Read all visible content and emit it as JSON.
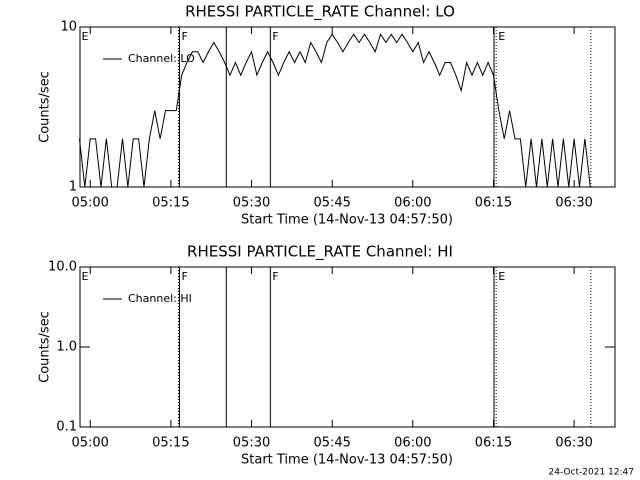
{
  "chart_data": [
    {
      "type": "line",
      "title": "RHESSI PARTICLE_RATE Channel: LO",
      "xlabel": "Start Time (14-Nov-13 04:57:50)",
      "ylabel": "Counts/sec",
      "log_y": true,
      "ylim": [
        1,
        10
      ],
      "yticks": [
        1,
        10
      ],
      "xlim": [
        298.1,
        397.6
      ],
      "xticks": [
        {
          "value": 300,
          "label": "05:00"
        },
        {
          "value": 315,
          "label": "05:15"
        },
        {
          "value": 330,
          "label": "05:30"
        },
        {
          "value": 345,
          "label": "05:45"
        },
        {
          "value": 360,
          "label": "06:00"
        },
        {
          "value": 375,
          "label": "06:15"
        },
        {
          "value": 390,
          "label": "06:30"
        }
      ],
      "x": [
        298,
        299,
        300,
        301,
        302,
        303,
        304,
        305,
        306,
        307,
        308,
        309,
        310,
        311,
        312,
        313,
        314,
        315,
        316,
        317,
        318,
        319,
        320,
        321,
        322,
        323,
        324,
        325,
        326,
        327,
        328,
        329,
        330,
        331,
        332,
        333,
        334,
        335,
        336,
        337,
        338,
        339,
        340,
        341,
        342,
        343,
        344,
        345,
        346,
        347,
        348,
        349,
        350,
        351,
        352,
        353,
        354,
        355,
        356,
        357,
        358,
        359,
        360,
        361,
        362,
        363,
        364,
        365,
        366,
        367,
        368,
        369,
        370,
        371,
        372,
        373,
        374,
        375,
        376,
        377,
        378,
        379,
        380,
        381,
        382,
        383,
        384,
        385,
        386,
        387,
        388,
        389,
        390,
        391,
        392,
        393
      ],
      "series": [
        {
          "name": "Channel: LO",
          "color": "#000000",
          "values": [
            2,
            1,
            2,
            2,
            1,
            2,
            1,
            1,
            2,
            1,
            2,
            2,
            1,
            2,
            3,
            2,
            3,
            3,
            3,
            5,
            6,
            7,
            7,
            6,
            7,
            8,
            7,
            6,
            5,
            6,
            5,
            6,
            7,
            5,
            6,
            7,
            6,
            5,
            6,
            7,
            6,
            7,
            6,
            8,
            7,
            6,
            8,
            9,
            8,
            7,
            8,
            9,
            8,
            9,
            8,
            7,
            9,
            8,
            9,
            8,
            9,
            8,
            7,
            8,
            6,
            7,
            6,
            5,
            6,
            6,
            5,
            4,
            6,
            5,
            6,
            5,
            6,
            5,
            3,
            2,
            3,
            2,
            2,
            1,
            2,
            1,
            2,
            1,
            2,
            1,
            2,
            1,
            2,
            1,
            2,
            1
          ]
        }
      ],
      "vlines": [
        {
          "x": 316.4,
          "dotted": true
        },
        {
          "x": 316.6,
          "dotted": false
        },
        {
          "x": 325.3,
          "dotted": false
        },
        {
          "x": 333.5,
          "dotted": false
        },
        {
          "x": 375.1,
          "dotted": false
        },
        {
          "x": 375.5,
          "dotted": true
        },
        {
          "x": 393.1,
          "dotted": true
        }
      ],
      "flags": [
        {
          "x": 298.2,
          "label": "E"
        },
        {
          "x": 316.8,
          "label": "F"
        },
        {
          "x": 333.7,
          "label": "F"
        },
        {
          "x": 375.7,
          "label": "E"
        }
      ]
    },
    {
      "type": "line",
      "title": "RHESSI PARTICLE_RATE Channel: HI",
      "xlabel": "Start Time (14-Nov-13 04:57:50)",
      "ylabel": "Counts/sec",
      "log_y": true,
      "ylim": [
        0.1,
        10
      ],
      "yticks": [
        0.1,
        {
          "value": 1,
          "label": "1.0"
        },
        {
          "value": 10,
          "label": "10.0"
        }
      ],
      "xlim": [
        298.1,
        397.6
      ],
      "xticks": [
        {
          "value": 300,
          "label": "05:00"
        },
        {
          "value": 315,
          "label": "05:15"
        },
        {
          "value": 330,
          "label": "05:30"
        },
        {
          "value": 345,
          "label": "05:45"
        },
        {
          "value": 360,
          "label": "06:00"
        },
        {
          "value": 375,
          "label": "06:15"
        },
        {
          "value": 390,
          "label": "06:30"
        }
      ],
      "x": [],
      "series": [
        {
          "name": "Channel: HI",
          "color": "#000000",
          "values": []
        }
      ],
      "vlines": [
        {
          "x": 316.4,
          "dotted": true
        },
        {
          "x": 316.6,
          "dotted": false
        },
        {
          "x": 325.3,
          "dotted": false
        },
        {
          "x": 333.5,
          "dotted": false
        },
        {
          "x": 375.1,
          "dotted": false
        },
        {
          "x": 375.5,
          "dotted": true
        },
        {
          "x": 393.1,
          "dotted": true
        }
      ],
      "flags": [
        {
          "x": 298.2,
          "label": "E"
        },
        {
          "x": 316.8,
          "label": "F"
        },
        {
          "x": 333.7,
          "label": "F"
        },
        {
          "x": 375.7,
          "label": "E"
        }
      ]
    }
  ],
  "footer": "24-Oct-2021 12:47"
}
